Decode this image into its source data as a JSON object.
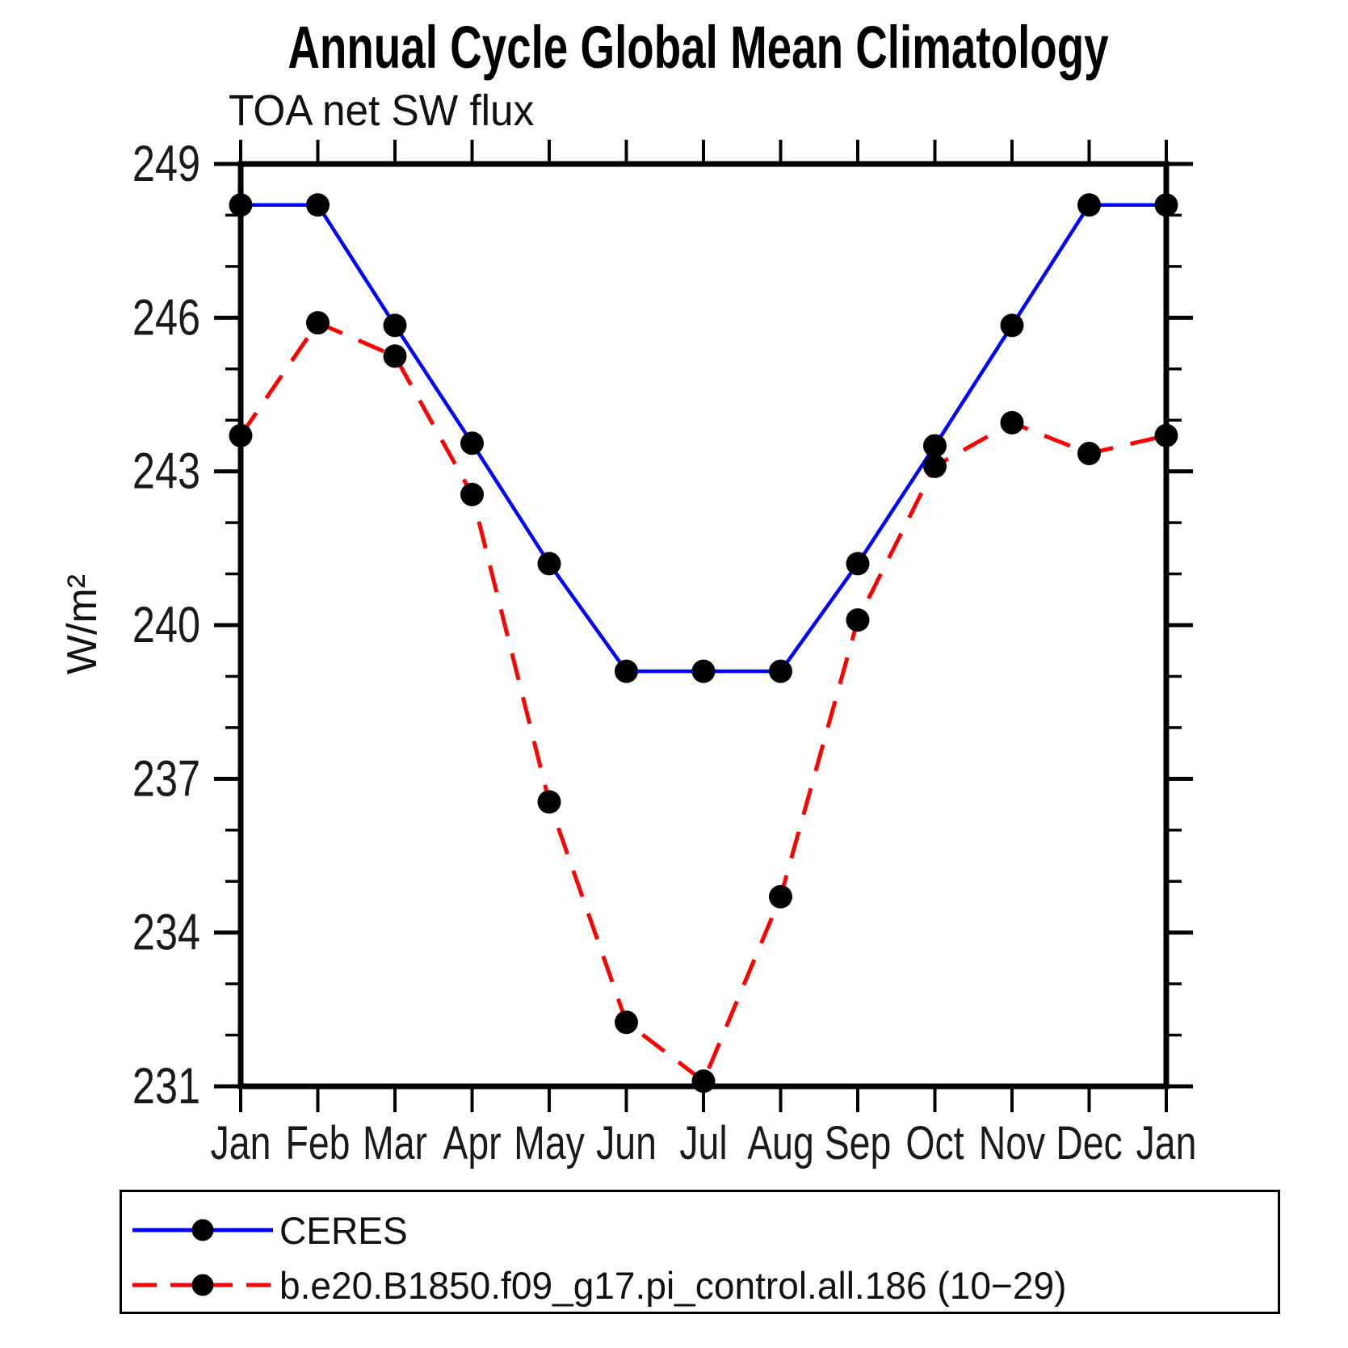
{
  "chart_data": {
    "type": "line",
    "title": "Annual Cycle Global Mean Climatology",
    "subtitle": "TOA net SW flux",
    "ylabel": "W/m²",
    "xlabel": "",
    "categories": [
      "Jan",
      "Feb",
      "Mar",
      "Apr",
      "May",
      "Jun",
      "Jul",
      "Aug",
      "Sep",
      "Oct",
      "Nov",
      "Dec",
      "Jan"
    ],
    "series": [
      {
        "name": "CERES",
        "color": "#0000ff",
        "line_style": "solid",
        "marker": "filled-circle",
        "marker_color": "#000000",
        "values": [
          248.2,
          248.2,
          245.85,
          243.55,
          241.2,
          239.1,
          239.1,
          239.1,
          241.2,
          243.5,
          245.85,
          248.2,
          248.2
        ]
      },
      {
        "name": "b.e20.B1850.f09_g17.pi_control.all.186 (10−29)",
        "color": "#ff0000",
        "line_style": "dashed",
        "marker": "filled-circle",
        "marker_color": "#000000",
        "values": [
          243.7,
          245.9,
          245.25,
          242.55,
          236.55,
          232.25,
          231.1,
          234.7,
          240.1,
          243.1,
          243.95,
          243.35,
          243.7
        ]
      }
    ],
    "ylim": [
      231,
      249
    ],
    "yticks_major": [
      231,
      234,
      237,
      240,
      243,
      246,
      249
    ],
    "ytick_minor_step": 1,
    "grid": false,
    "legend_position": "bottom-left-box",
    "axis_color": "#000000",
    "tick_direction": "out"
  }
}
